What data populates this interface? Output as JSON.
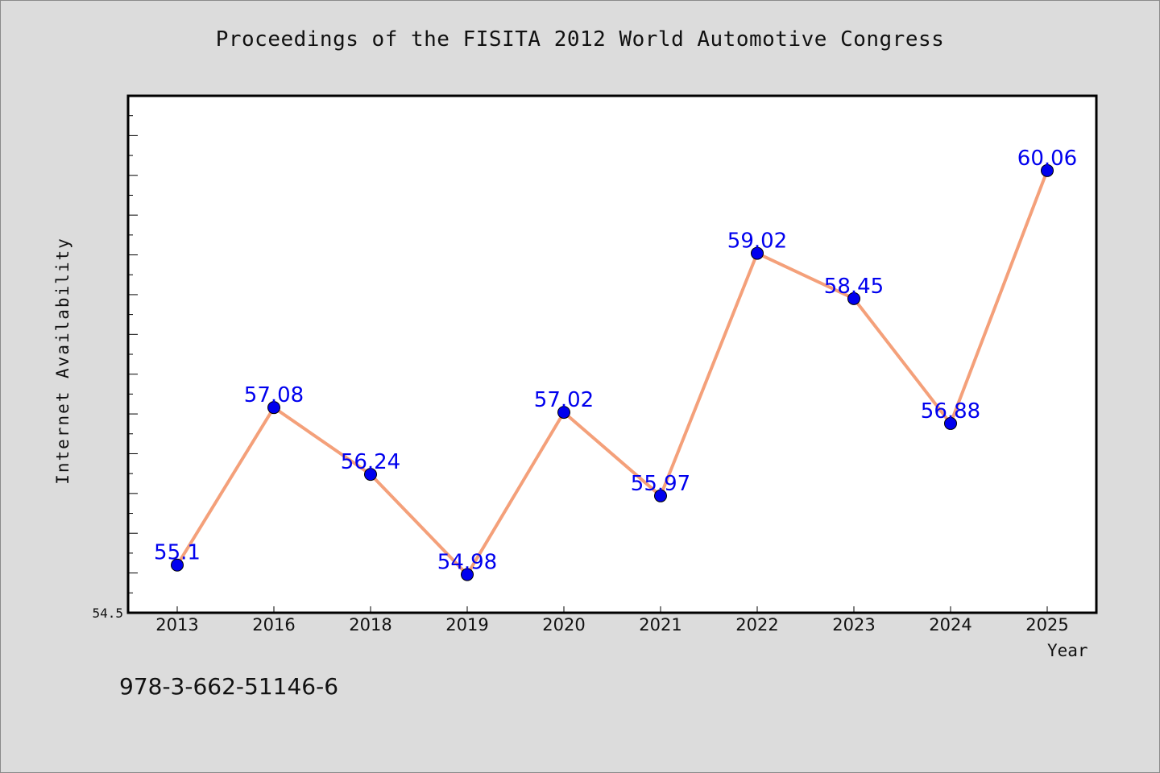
{
  "title": "Proceedings of the FISITA 2012 World Automotive Congress",
  "footer": {
    "isbn": "978-3-662-51146-6"
  },
  "chart_data": {
    "type": "line",
    "title": "Proceedings of the FISITA 2012 World Automotive Congress",
    "xlabel": "Year",
    "ylabel": "Internet Availability",
    "categories": [
      "2013",
      "2016",
      "2018",
      "2019",
      "2020",
      "2021",
      "2022",
      "2023",
      "2024",
      "2025"
    ],
    "series": [
      {
        "values": [
          55.1,
          57.08,
          56.24,
          54.98,
          57.02,
          55.97,
          59.02,
          58.45,
          56.88,
          60.06
        ],
        "labels": [
          "55.1",
          "57.08",
          "56.24",
          "54.98",
          "57.02",
          "55.97",
          "59.02",
          "58.45",
          "56.88",
          "60.06"
        ]
      }
    ],
    "ylim": [
      54.5,
      61.0
    ],
    "ytick_labels": [
      "54.5"
    ],
    "grid": false,
    "colors": {
      "line": "#f4a07a",
      "marker": "#0000ee",
      "label": "#0000ee",
      "plot_bg": "#ffffff",
      "page_bg": "#dcdcdc"
    }
  }
}
